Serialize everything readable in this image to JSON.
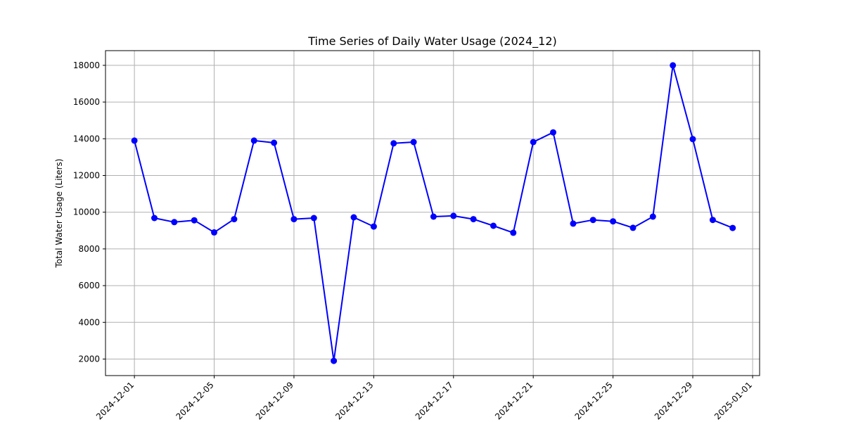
{
  "chart_data": {
    "type": "line",
    "title": "Time Series of Daily Water Usage (2024_12)",
    "xlabel": "",
    "ylabel": "Total Water Usage (Liters)",
    "x_tick_labels": [
      "2024-12-01",
      "2024-12-05",
      "2024-12-09",
      "2024-12-13",
      "2024-12-17",
      "2024-12-21",
      "2024-12-25",
      "2024-12-29",
      "2025-01-01"
    ],
    "y_tick_labels": [
      "2000",
      "4000",
      "6000",
      "8000",
      "10000",
      "12000",
      "14000",
      "16000",
      "18000"
    ],
    "xlim": [
      "2024-11-29",
      "2025-01-01"
    ],
    "ylim": [
      1100,
      18800
    ],
    "grid": true,
    "line_color": "#0000ff",
    "series": [
      {
        "x": [
          "2024-12-01",
          "2024-12-02",
          "2024-12-03",
          "2024-12-04",
          "2024-12-05",
          "2024-12-06",
          "2024-12-07",
          "2024-12-08",
          "2024-12-09",
          "2024-12-10",
          "2024-12-11",
          "2024-12-12",
          "2024-12-13",
          "2024-12-14",
          "2024-12-15",
          "2024-12-16",
          "2024-12-17",
          "2024-12-18",
          "2024-12-19",
          "2024-12-20",
          "2024-12-21",
          "2024-12-22",
          "2024-12-23",
          "2024-12-24",
          "2024-12-25",
          "2024-12-26",
          "2024-12-27",
          "2024-12-28",
          "2024-12-29",
          "2024-12-30",
          "2024-12-31"
        ],
        "values": [
          13900,
          9680,
          9460,
          9560,
          8900,
          9620,
          13900,
          13780,
          9620,
          9680,
          1900,
          9720,
          9220,
          13750,
          13820,
          9760,
          9800,
          9620,
          9260,
          8880,
          13820,
          14350,
          9380,
          9580,
          9500,
          9150,
          9760,
          18000,
          13980,
          9580,
          9140
        ]
      }
    ]
  }
}
